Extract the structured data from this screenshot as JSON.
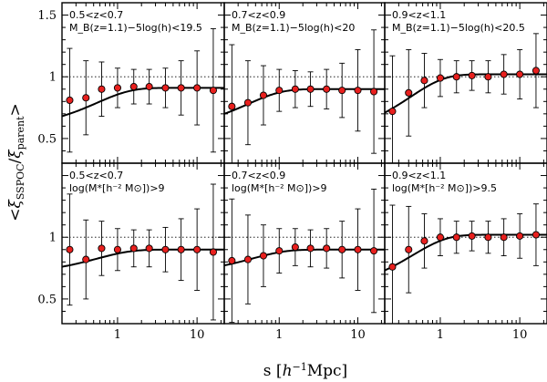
{
  "chart_data": {
    "type": "scatter",
    "title": "",
    "xlabel": "s [h⁻¹Mpc]",
    "ylabel": "<ξ_SSPOC / ξ_parent>",
    "xscale": "log",
    "xlim": [
      0.2,
      22
    ],
    "ylim": [
      0.3,
      1.6
    ],
    "x_ticks": [
      1,
      10
    ],
    "x_tick_labels": [
      "1",
      "10"
    ],
    "y_ticks": [
      0.5,
      1,
      1.5
    ],
    "y_tick_labels": [
      "0.5",
      "1",
      "1.5"
    ],
    "reference_line": 1,
    "x": [
      0.25,
      0.4,
      0.63,
      1.0,
      1.6,
      2.5,
      4.0,
      6.3,
      10.0,
      16.0
    ],
    "panels": [
      {
        "label_line1": "0.5<z<0.7",
        "label_line2": "M_B(z=1.1)−5log(h)<19.5",
        "y": [
          0.81,
          0.83,
          0.9,
          0.91,
          0.92,
          0.92,
          0.91,
          0.91,
          0.91,
          0.89
        ],
        "err": [
          0.42,
          0.3,
          0.22,
          0.16,
          0.14,
          0.14,
          0.16,
          0.22,
          0.3,
          0.5
        ],
        "fit_plateau": 0.91,
        "fit_amp": 0.33,
        "fit_scale": 0.55
      },
      {
        "label_line1": "0.7<z<0.9",
        "label_line2": "M_B(z=1.1)−5log(h)<20",
        "y": [
          0.76,
          0.79,
          0.85,
          0.89,
          0.9,
          0.9,
          0.9,
          0.89,
          0.89,
          0.88
        ],
        "err": [
          0.5,
          0.34,
          0.24,
          0.17,
          0.15,
          0.14,
          0.16,
          0.22,
          0.33,
          0.5
        ],
        "fit_plateau": 0.9,
        "fit_amp": 0.33,
        "fit_scale": 0.4
      },
      {
        "label_line1": "0.9<z<1.1",
        "label_line2": "M_B(z=1.1)−5log(h)<20.5",
        "y": [
          0.72,
          0.87,
          0.97,
          0.99,
          1.0,
          1.01,
          1.0,
          1.02,
          1.02,
          1.05
        ],
        "err": [
          0.45,
          0.35,
          0.22,
          0.15,
          0.13,
          0.12,
          0.13,
          0.16,
          0.2,
          0.3
        ],
        "fit_plateau": 1.02,
        "fit_amp": 0.5,
        "fit_scale": 0.42
      },
      {
        "label_line1": "0.5<z<0.7",
        "label_line2": "log(M*[h⁻² M⊙])>9",
        "y": [
          0.9,
          0.82,
          0.91,
          0.9,
          0.91,
          0.91,
          0.9,
          0.9,
          0.9,
          0.88
        ],
        "err": [
          0.45,
          0.32,
          0.22,
          0.17,
          0.15,
          0.15,
          0.18,
          0.25,
          0.33,
          0.55
        ],
        "fit_plateau": 0.9,
        "fit_amp": 0.2,
        "fit_scale": 0.55
      },
      {
        "label_line1": "0.7<z<0.9",
        "label_line2": "log(M*[h⁻² M⊙])>9",
        "y": [
          0.81,
          0.82,
          0.85,
          0.89,
          0.92,
          0.91,
          0.91,
          0.9,
          0.9,
          0.89
        ],
        "err": [
          0.5,
          0.36,
          0.25,
          0.18,
          0.15,
          0.15,
          0.16,
          0.23,
          0.33,
          0.5
        ],
        "fit_plateau": 0.9,
        "fit_amp": 0.2,
        "fit_scale": 0.45
      },
      {
        "label_line1": "0.9<z<1.1",
        "label_line2": "log(M*[h⁻² M⊙])>9.5",
        "y": [
          0.76,
          0.9,
          0.97,
          1.0,
          1.0,
          1.01,
          1.0,
          1.0,
          1.01,
          1.02
        ],
        "err": [
          0.5,
          0.35,
          0.22,
          0.15,
          0.13,
          0.12,
          0.13,
          0.15,
          0.18,
          0.25
        ],
        "fit_plateau": 1.02,
        "fit_amp": 0.45,
        "fit_scale": 0.45
      }
    ]
  }
}
